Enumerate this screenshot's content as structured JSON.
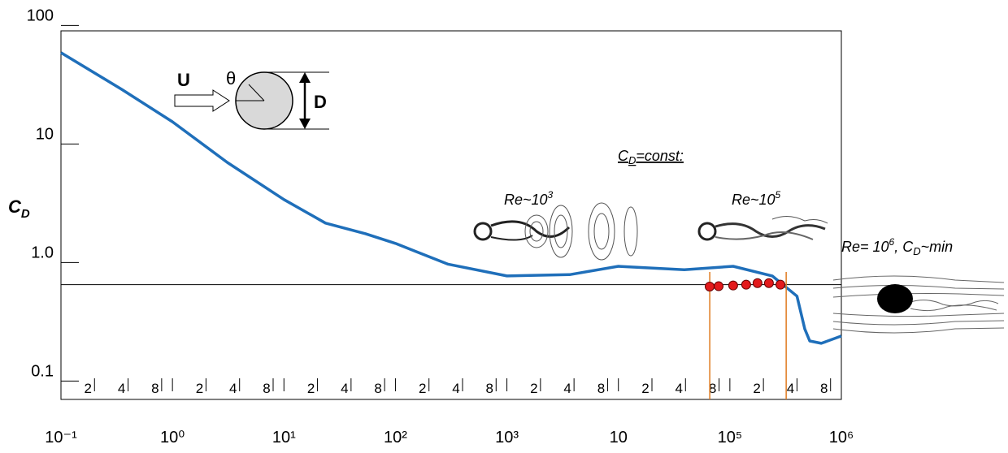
{
  "chart_data": {
    "type": "line",
    "xlog": true,
    "ylog": true,
    "ylabel": [
      "C",
      "D"
    ],
    "xlim": [
      0.1,
      1000000
    ],
    "ylim": [
      0.07,
      90
    ],
    "yticks": [
      0.1,
      {
        "value": 1,
        "label": "1.0"
      },
      10,
      100
    ],
    "xticks": [
      {
        "value": 0.1,
        "label": "10⁻¹"
      },
      {
        "value": 0.2,
        "label": "2"
      },
      {
        "value": 0.4,
        "label": "4"
      },
      {
        "value": 0.8,
        "label": "8"
      },
      {
        "value": 1,
        "label": "10⁰"
      },
      {
        "value": 2,
        "label": "2"
      },
      {
        "value": 4,
        "label": "4"
      },
      {
        "value": 8,
        "label": "8"
      },
      {
        "value": 10,
        "label": "10¹"
      },
      {
        "value": 20,
        "label": "2"
      },
      {
        "value": 40,
        "label": "4"
      },
      {
        "value": 80,
        "label": "8"
      },
      {
        "value": 100,
        "label": "10²"
      },
      {
        "value": 200,
        "label": "2"
      },
      {
        "value": 400,
        "label": "4"
      },
      {
        "value": 800,
        "label": "8"
      },
      {
        "value": 1000,
        "label": "10³"
      },
      {
        "value": 2000,
        "label": "2"
      },
      {
        "value": 4000,
        "label": "4"
      },
      {
        "value": 8000,
        "label": "8"
      },
      {
        "value": 10000,
        "label": "10"
      },
      {
        "value": 20000,
        "label": "2"
      },
      {
        "value": 40000,
        "label": "4"
      },
      {
        "value": 80000,
        "label": "8"
      },
      {
        "value": 100000,
        "label": "10⁵"
      },
      {
        "value": 200000,
        "label": "2"
      },
      {
        "value": 400000,
        "label": "4"
      },
      {
        "value": 800000,
        "label": "8"
      },
      {
        "value": 1000000,
        "label": "10⁶"
      }
    ],
    "series": [
      {
        "color": "#1f6fba",
        "marker": "none",
        "x": [
          0.1,
          0.35,
          1,
          3.1,
          10,
          23.6,
          54,
          100,
          294,
          1000,
          3650,
          10000,
          39000,
          107000,
          240000,
          400000,
          470000,
          520000,
          660000,
          1000000
        ],
        "values": [
          58.9,
          28.9,
          15.4,
          7.0,
          3.4,
          2.15,
          1.75,
          1.45,
          0.97,
          0.77,
          0.79,
          0.93,
          0.87,
          0.93,
          0.77,
          0.52,
          0.275,
          0.218,
          0.208,
          0.24
        ]
      },
      {
        "color": "#e31a1c",
        "marker": "circle",
        "x": [
          65900,
          79300,
          107000,
          140000,
          177000,
          224000,
          284000
        ],
        "values": [
          0.627,
          0.631,
          0.64,
          0.65,
          0.67,
          0.67,
          0.65
        ]
      }
    ],
    "hline": 0.65,
    "vlines": [
      66000,
      320000
    ],
    "vline_color": "#e07b20",
    "annotations": {
      "cd_const": [
        "C",
        "D",
        "=const:"
      ],
      "re3": [
        "Re~10",
        "3"
      ],
      "re5": [
        "Re~10",
        "5"
      ],
      "re6": [
        "Re= 10",
        "6",
        ", C",
        "D",
        "~min"
      ],
      "diagram": [
        "U",
        "θ",
        "D"
      ]
    }
  }
}
